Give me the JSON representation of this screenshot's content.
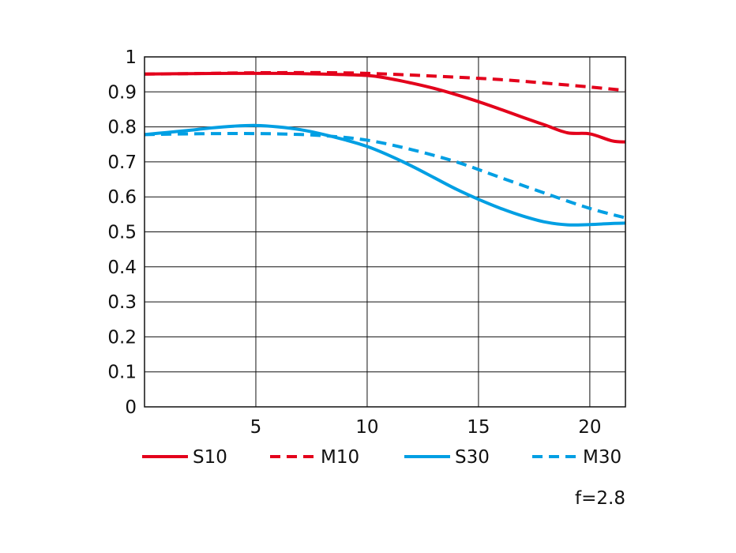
{
  "chart_data": {
    "type": "line",
    "title": "",
    "xlabel": "",
    "ylabel": "",
    "xlim": [
      0,
      21.6
    ],
    "ylim": [
      0,
      1
    ],
    "x_ticks": [
      5,
      10,
      15,
      20
    ],
    "y_ticks": [
      0,
      0.1,
      0.2,
      0.3,
      0.4,
      0.5,
      0.6,
      0.7,
      0.8,
      0.9,
      1
    ],
    "grid": true,
    "legend_position": "bottom",
    "annotation": "f=2.8",
    "colors": {
      "red": "#e3001b",
      "blue": "#009fe3",
      "grid": "#111111"
    },
    "series": [
      {
        "name": "S10",
        "color": "#e3001b",
        "dash": "solid",
        "points": [
          [
            0,
            0.951
          ],
          [
            2,
            0.952
          ],
          [
            4,
            0.953
          ],
          [
            6,
            0.953
          ],
          [
            8,
            0.951
          ],
          [
            10,
            0.947
          ],
          [
            11,
            0.938
          ],
          [
            12,
            0.925
          ],
          [
            13,
            0.91
          ],
          [
            14,
            0.892
          ],
          [
            15,
            0.872
          ],
          [
            16,
            0.85
          ],
          [
            17,
            0.827
          ],
          [
            18,
            0.805
          ],
          [
            19,
            0.783
          ],
          [
            20,
            0.78
          ],
          [
            21,
            0.76
          ],
          [
            21.6,
            0.757
          ]
        ]
      },
      {
        "name": "M10",
        "color": "#e3001b",
        "dash": "dashed",
        "points": [
          [
            0,
            0.951
          ],
          [
            2,
            0.952
          ],
          [
            4,
            0.954
          ],
          [
            6,
            0.955
          ],
          [
            8,
            0.955
          ],
          [
            10,
            0.953
          ],
          [
            12,
            0.948
          ],
          [
            14,
            0.942
          ],
          [
            16,
            0.935
          ],
          [
            18,
            0.925
          ],
          [
            20,
            0.914
          ],
          [
            21.6,
            0.904
          ]
        ]
      },
      {
        "name": "S30",
        "color": "#009fe3",
        "dash": "solid",
        "points": [
          [
            0,
            0.778
          ],
          [
            1,
            0.784
          ],
          [
            2,
            0.79
          ],
          [
            3,
            0.797
          ],
          [
            4,
            0.802
          ],
          [
            5,
            0.804
          ],
          [
            6,
            0.8
          ],
          [
            7,
            0.792
          ],
          [
            8,
            0.779
          ],
          [
            9,
            0.763
          ],
          [
            10,
            0.744
          ],
          [
            11,
            0.718
          ],
          [
            12,
            0.688
          ],
          [
            13,
            0.655
          ],
          [
            14,
            0.622
          ],
          [
            15,
            0.593
          ],
          [
            16,
            0.567
          ],
          [
            17,
            0.545
          ],
          [
            18,
            0.528
          ],
          [
            19,
            0.52
          ],
          [
            20,
            0.521
          ],
          [
            21,
            0.524
          ],
          [
            21.6,
            0.525
          ]
        ]
      },
      {
        "name": "M30",
        "color": "#009fe3",
        "dash": "dashed",
        "points": [
          [
            0,
            0.778
          ],
          [
            2,
            0.78
          ],
          [
            4,
            0.781
          ],
          [
            6,
            0.78
          ],
          [
            8,
            0.775
          ],
          [
            10,
            0.762
          ],
          [
            12,
            0.735
          ],
          [
            14,
            0.7
          ],
          [
            16,
            0.655
          ],
          [
            18,
            0.61
          ],
          [
            20,
            0.567
          ],
          [
            21.6,
            0.54
          ]
        ]
      }
    ]
  }
}
